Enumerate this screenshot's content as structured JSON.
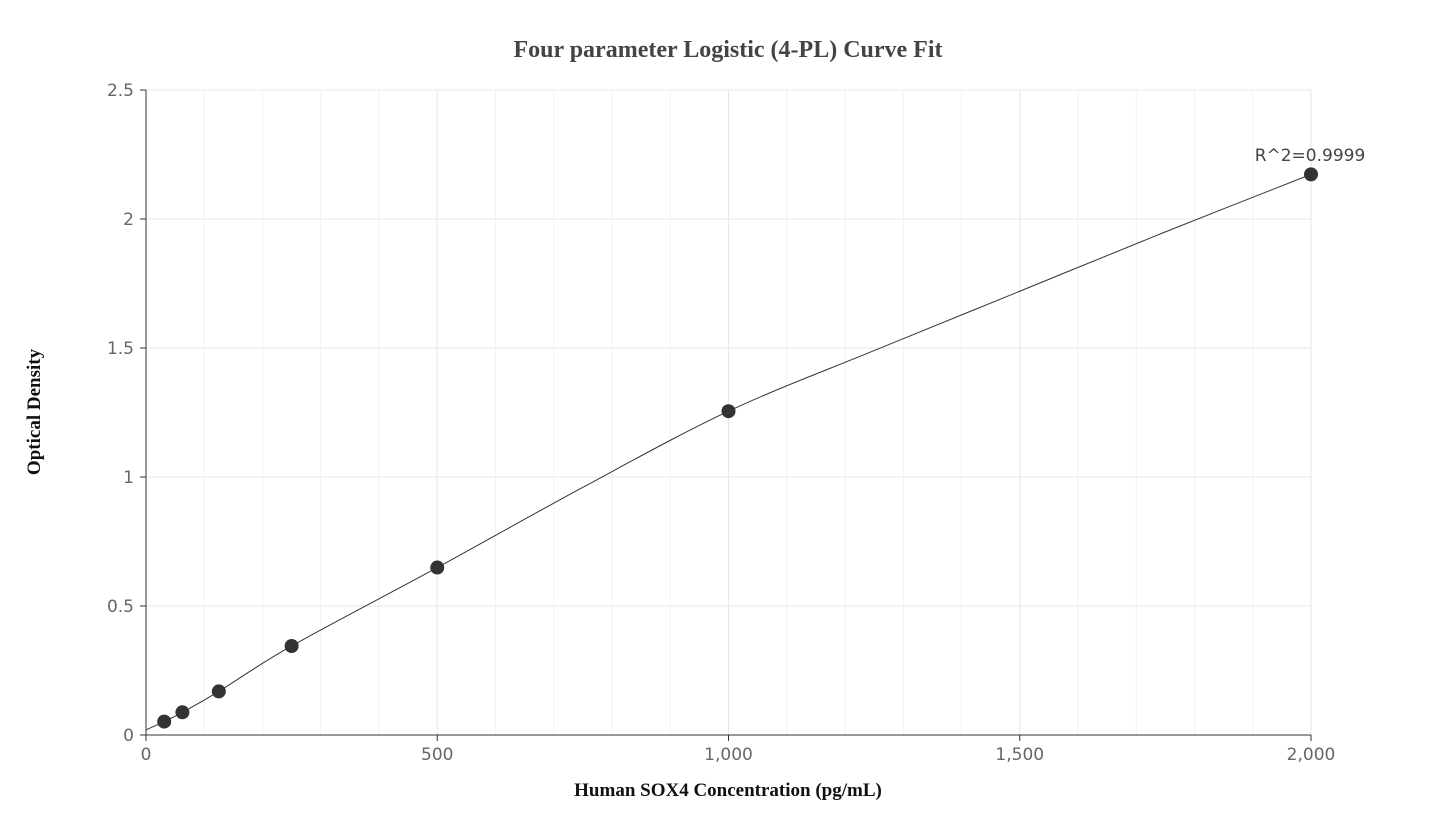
{
  "chart_data": {
    "type": "scatter",
    "title": "Four parameter Logistic (4-PL) Curve Fit",
    "xlabel": "Human SOX4 Concentration (pg/mL)",
    "ylabel": "Optical Density",
    "xlim": [
      0,
      2000
    ],
    "ylim": [
      0,
      2.5
    ],
    "xticks": [
      0,
      500,
      1000,
      1500,
      2000
    ],
    "xtick_labels": [
      "0",
      "500",
      "1,000",
      "1,500",
      "2,000"
    ],
    "yticks": [
      0,
      0.5,
      1,
      1.5,
      2,
      2.5
    ],
    "ytick_labels": [
      "0",
      "0.5",
      "1",
      "1.5",
      "2",
      "2.5"
    ],
    "grid": true,
    "series": [
      {
        "marker": "circle",
        "x": [
          31.25,
          62.5,
          125,
          250,
          500,
          1000,
          2000
        ],
        "y": [
          0.052,
          0.088,
          0.169,
          0.345,
          0.649,
          1.255,
          2.173
        ]
      }
    ],
    "fit_curve": {
      "x": [
        0,
        31.25,
        62.5,
        125,
        250,
        500,
        750,
        1000,
        1250,
        1500,
        1750,
        2000
      ],
      "y": [
        0.02,
        0.052,
        0.088,
        0.169,
        0.345,
        0.649,
        0.96,
        1.255,
        1.49,
        1.72,
        1.95,
        2.173
      ]
    },
    "annotation": "R^2=0.9999",
    "colors": {
      "marker": "#333333",
      "line": "#333333",
      "grid": "#e6e6ef",
      "axis": "#333333"
    }
  }
}
